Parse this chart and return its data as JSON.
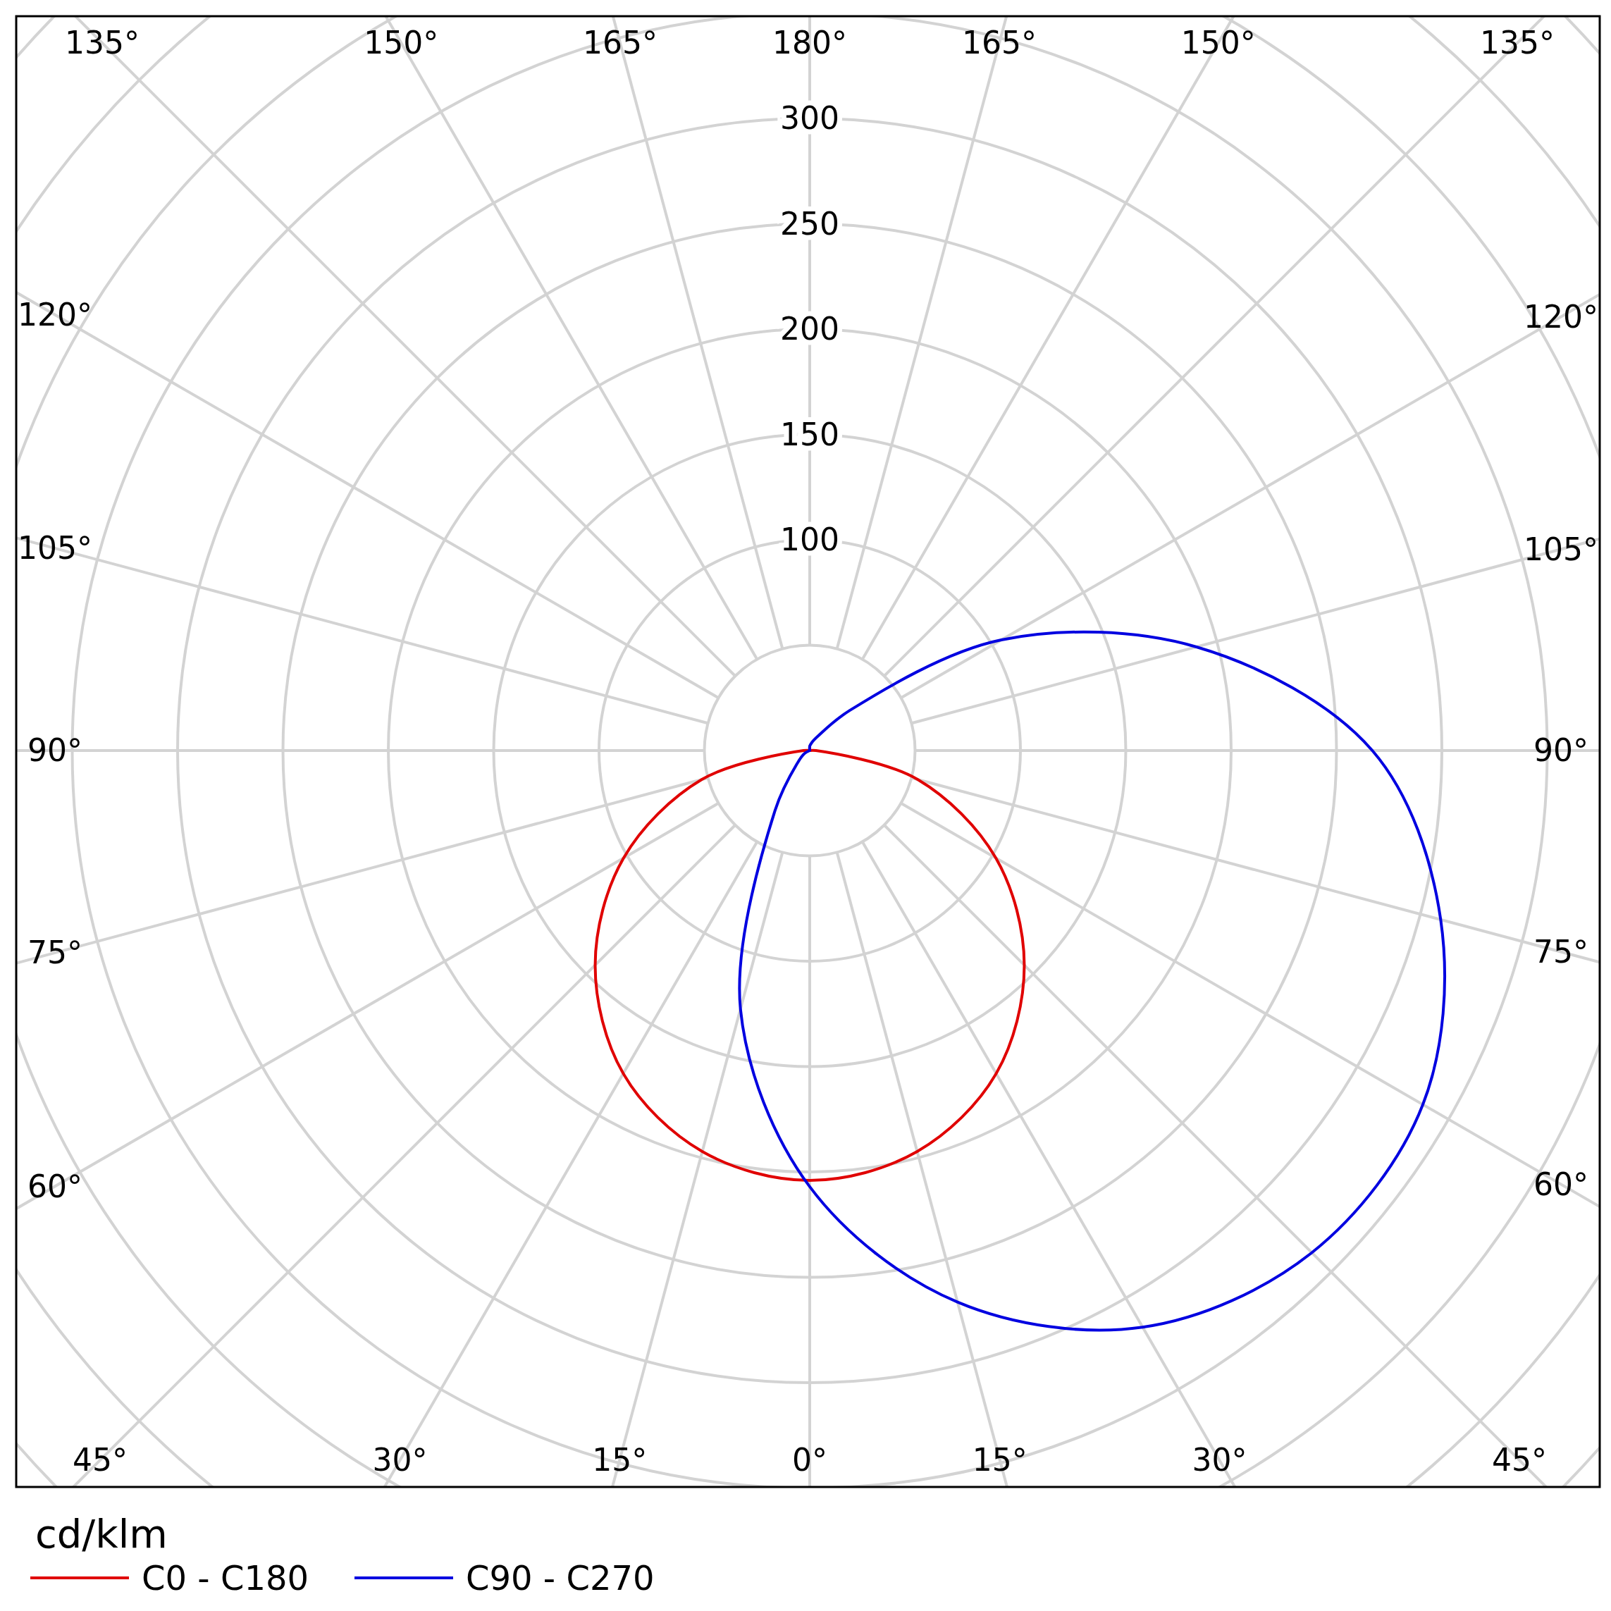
{
  "chart_data": {
    "type": "radar",
    "ylabel": "cd/klm",
    "categories": [
      "180°",
      "165°",
      "150°",
      "135°",
      "120°",
      "105°",
      "90°",
      "75°",
      "60°",
      "45°",
      "30°",
      "15°",
      "0°",
      "15°",
      "30°",
      "45°",
      "60°",
      "75°",
      "90°",
      "105°",
      "120°",
      "135°",
      "150°",
      "165°"
    ],
    "series": [
      {
        "name": "C0 - C180",
        "color": "#e00000",
        "values": [
          2,
          0,
          0,
          0,
          0,
          0,
          3,
          53,
          102,
          144,
          177,
          197,
          204,
          197,
          177,
          144,
          102,
          53,
          3,
          0,
          0,
          0,
          0,
          0
        ]
      },
      {
        "name": "C90 - C270",
        "color": "#0000e0",
        "values": [
          2,
          4,
          8,
          27,
          105,
          190,
          267,
          310,
          336,
          337,
          316,
          271,
          207,
          127,
          33,
          8,
          3,
          0,
          0,
          0,
          0,
          0,
          0,
          0
        ]
      }
    ],
    "ylim": [
      0,
      500
    ],
    "yticks": [
      100,
      150,
      200,
      250,
      300
    ],
    "grid": true,
    "legend": "bottom"
  }
}
